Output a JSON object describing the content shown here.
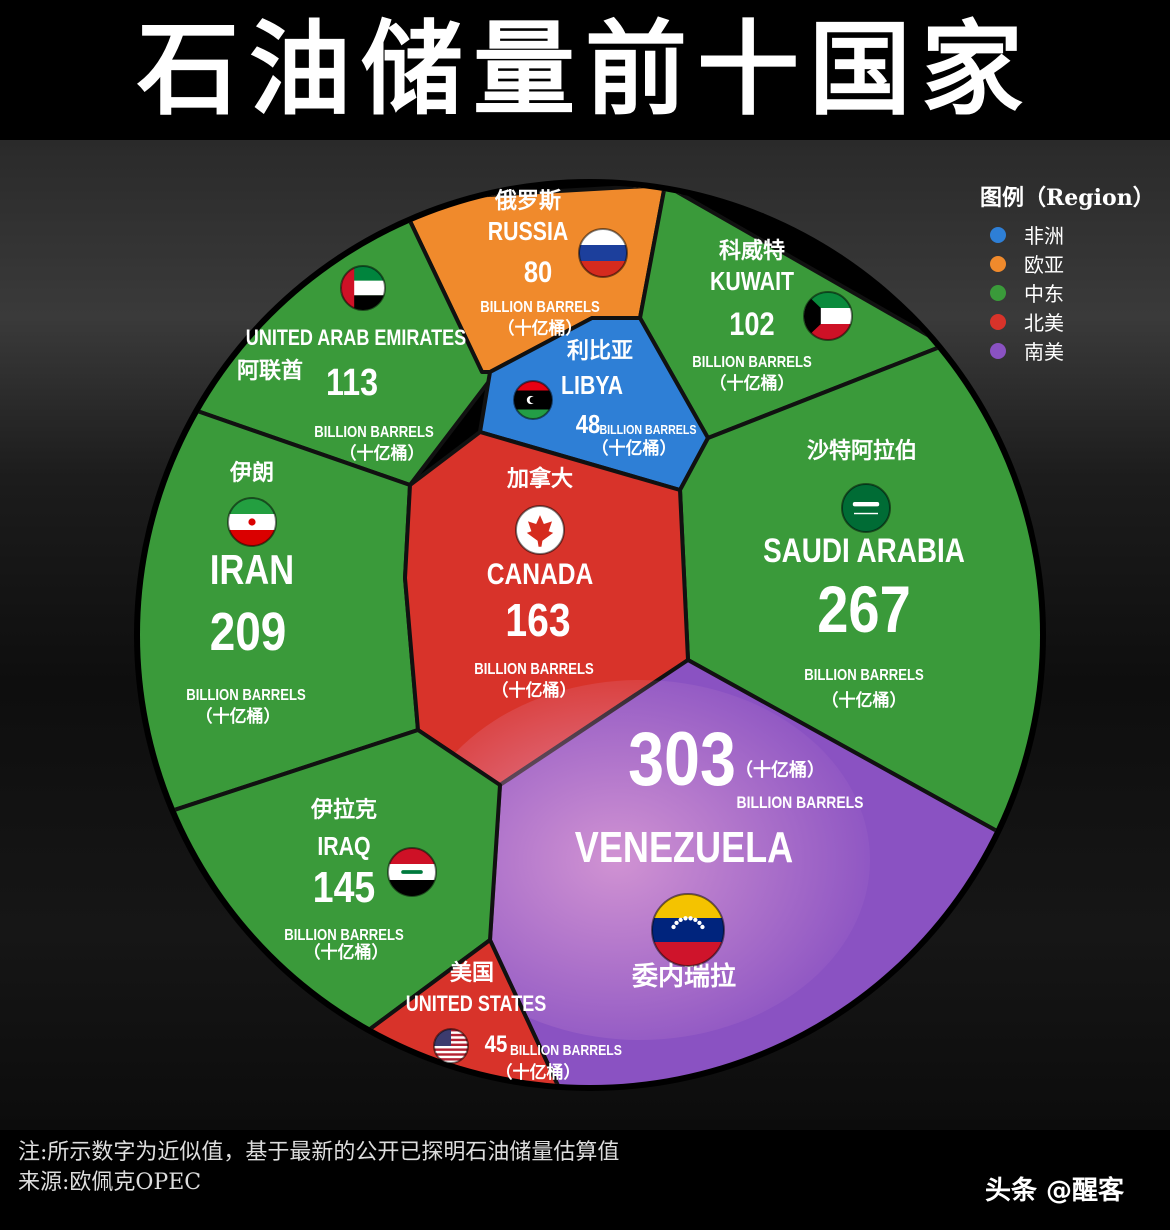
{
  "title": "石油储量前十国家",
  "legend": {
    "title": "图例（Region）",
    "items": [
      {
        "label": "非洲",
        "color": "#2e7fd6"
      },
      {
        "label": "欧亚",
        "color": "#f08a2c"
      },
      {
        "label": "中东",
        "color": "#3a9a3a"
      },
      {
        "label": "北美",
        "color": "#d8332a"
      },
      {
        "label": "南美",
        "color": "#8a52c2"
      }
    ]
  },
  "chart_data": {
    "type": "voronoi",
    "unit_en": "BILLION BARRELS",
    "unit_cn": "（十亿桶）",
    "cells": [
      {
        "id": "russia",
        "name_cn": "俄罗斯",
        "name_en": "RUSSIA",
        "value": 80,
        "region": "欧亚",
        "flag": "russia-flag"
      },
      {
        "id": "kuwait",
        "name_cn": "科威特",
        "name_en": "KUWAIT",
        "value": 102,
        "region": "中东",
        "flag": "kuwait-flag"
      },
      {
        "id": "uae",
        "name_cn": "阿联酋",
        "name_en": "UNITED ARAB EMIRATES",
        "value": 113,
        "region": "中东",
        "flag": "uae-flag"
      },
      {
        "id": "libya",
        "name_cn": "利比亚",
        "name_en": "LIBYA",
        "value": 48,
        "region": "非洲",
        "flag": "libya-flag"
      },
      {
        "id": "saudi",
        "name_cn": "沙特阿拉伯",
        "name_en": "SAUDI ARABIA",
        "value": 267,
        "region": "中东",
        "flag": "saudi-flag"
      },
      {
        "id": "iran",
        "name_cn": "伊朗",
        "name_en": "IRAN",
        "value": 209,
        "region": "中东",
        "flag": "iran-flag"
      },
      {
        "id": "canada",
        "name_cn": "加拿大",
        "name_en": "CANADA",
        "value": 163,
        "region": "北美",
        "flag": "canada-flag"
      },
      {
        "id": "venezuela",
        "name_cn": "委内瑞拉",
        "name_en": "VENEZUELA",
        "value": 303,
        "region": "南美",
        "flag": "venezuela-flag"
      },
      {
        "id": "iraq",
        "name_cn": "伊拉克",
        "name_en": "IRAQ",
        "value": 145,
        "region": "中东",
        "flag": "iraq-flag"
      },
      {
        "id": "usa",
        "name_cn": "美国",
        "name_en": "UNITED STATES",
        "value": 45,
        "region": "北美",
        "flag": "usa-flag"
      }
    ]
  },
  "footer": {
    "note": "注:所示数字为近似值，基于最新的公开已探明石油储量估算值",
    "source": "来源:欧佩克OPEC"
  },
  "watermark": "头条 @醒客"
}
